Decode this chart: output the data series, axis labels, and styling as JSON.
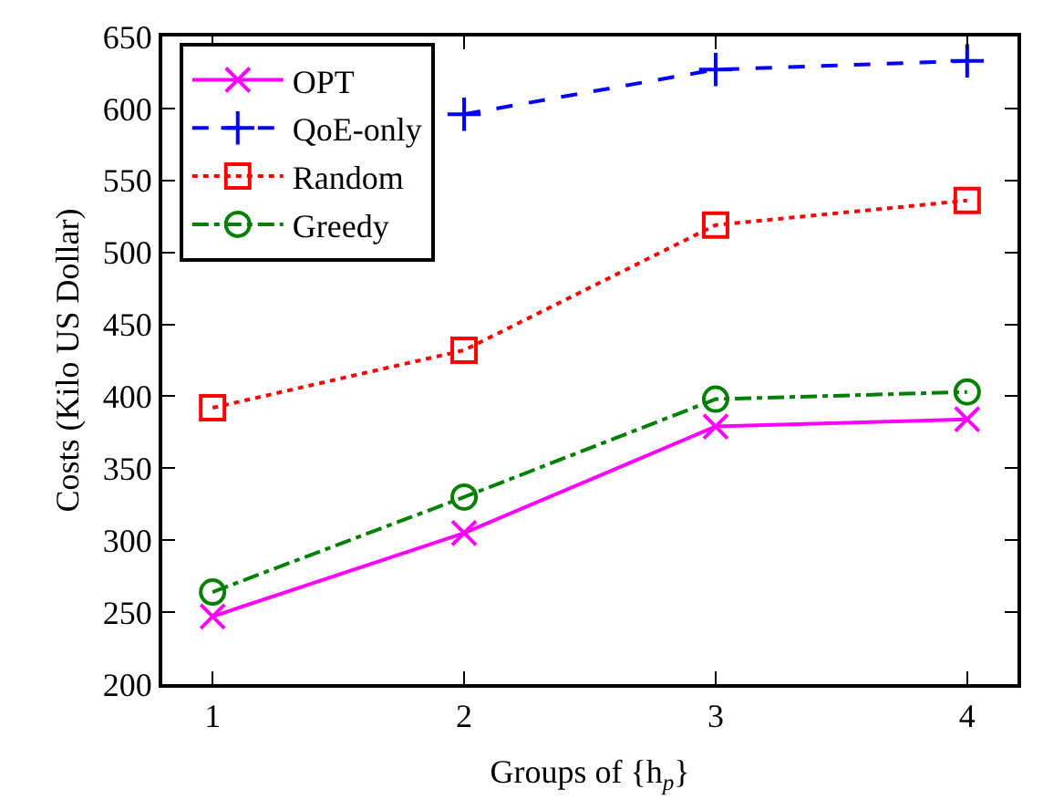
{
  "chart_data": {
    "type": "line",
    "xlabel": "Groups of {h$_{p}$}",
    "ylabel": "Costs (Kilo US Dollar)",
    "x": [
      1,
      2,
      3,
      4
    ],
    "xlim": [
      0.8,
      4.2
    ],
    "xticks": [
      1,
      2,
      3,
      4
    ],
    "ylim": [
      200,
      650
    ],
    "yticks": [
      200,
      250,
      300,
      350,
      400,
      450,
      500,
      550,
      600,
      650
    ],
    "legend": "top left",
    "series": [
      {
        "name": "OPT",
        "color": "#ff00ff",
        "values": [
          247,
          305,
          379,
          384
        ],
        "marker": "cross",
        "line_style": "solid"
      },
      {
        "name": "QoE-only",
        "color": "#0000ff",
        "values": [
          null,
          596,
          627,
          633
        ],
        "marker": "plus",
        "line_style": "dashed"
      },
      {
        "name": "Random",
        "color": "#ff0000",
        "values": [
          392,
          432,
          519,
          536
        ],
        "marker": "square",
        "line_style": "dotted"
      },
      {
        "name": "Greedy",
        "color": "#008000",
        "values": [
          264,
          330,
          398,
          403
        ],
        "marker": "circle",
        "line_style": "dashdot"
      }
    ]
  }
}
